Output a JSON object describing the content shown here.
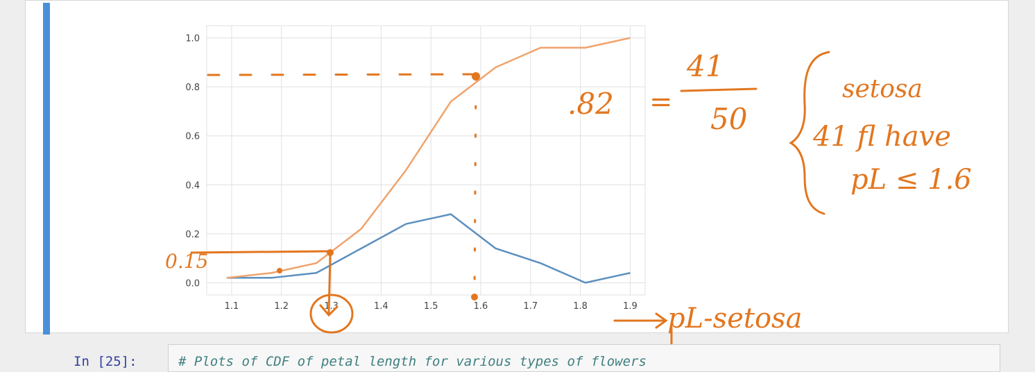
{
  "colors": {
    "accent": "#4a90d9",
    "pdf_line": "#5b8fbe",
    "cdf_line": "#f0a36b",
    "annotation": "#e2761f",
    "grid": "#e0e0e0"
  },
  "chart_data": {
    "type": "line",
    "title": "",
    "xlabel": "",
    "ylabel": "",
    "xlim": [
      1.05,
      1.93
    ],
    "ylim": [
      -0.05,
      1.05
    ],
    "xticks": [
      "1.1",
      "1.2",
      "1.3",
      "1.4",
      "1.5",
      "1.6",
      "1.7",
      "1.8",
      "1.9"
    ],
    "yticks": [
      "0.0",
      "0.2",
      "0.4",
      "0.6",
      "0.8",
      "1.0"
    ],
    "grid": true,
    "series": [
      {
        "role": "pdf",
        "color": "#5b8fbe",
        "x": [
          1.09,
          1.18,
          1.27,
          1.36,
          1.45,
          1.54,
          1.63,
          1.72,
          1.81,
          1.9
        ],
        "y": [
          0.02,
          0.02,
          0.04,
          0.14,
          0.24,
          0.28,
          0.14,
          0.08,
          0.0,
          0.04
        ]
      },
      {
        "role": "cdf",
        "color": "#f0a36b",
        "x": [
          1.09,
          1.18,
          1.27,
          1.36,
          1.45,
          1.54,
          1.63,
          1.72,
          1.81,
          1.9
        ],
        "y": [
          0.02,
          0.04,
          0.08,
          0.22,
          0.46,
          0.74,
          0.88,
          0.96,
          0.96,
          1.0
        ]
      }
    ]
  },
  "annotations": {
    "value_082": ".82",
    "equals": "=",
    "fraction_top": "41",
    "fraction_bottom": "50",
    "brace_line1": "setosa",
    "brace_line2": "41 fl have",
    "brace_line3": "pL ≤ 1.6",
    "label_015": "0.15",
    "arrow_label": "pL-setosa"
  },
  "input_cell": {
    "prompt": "In [25]:",
    "code": "# Plots of CDF of petal length for various types of flowers"
  }
}
